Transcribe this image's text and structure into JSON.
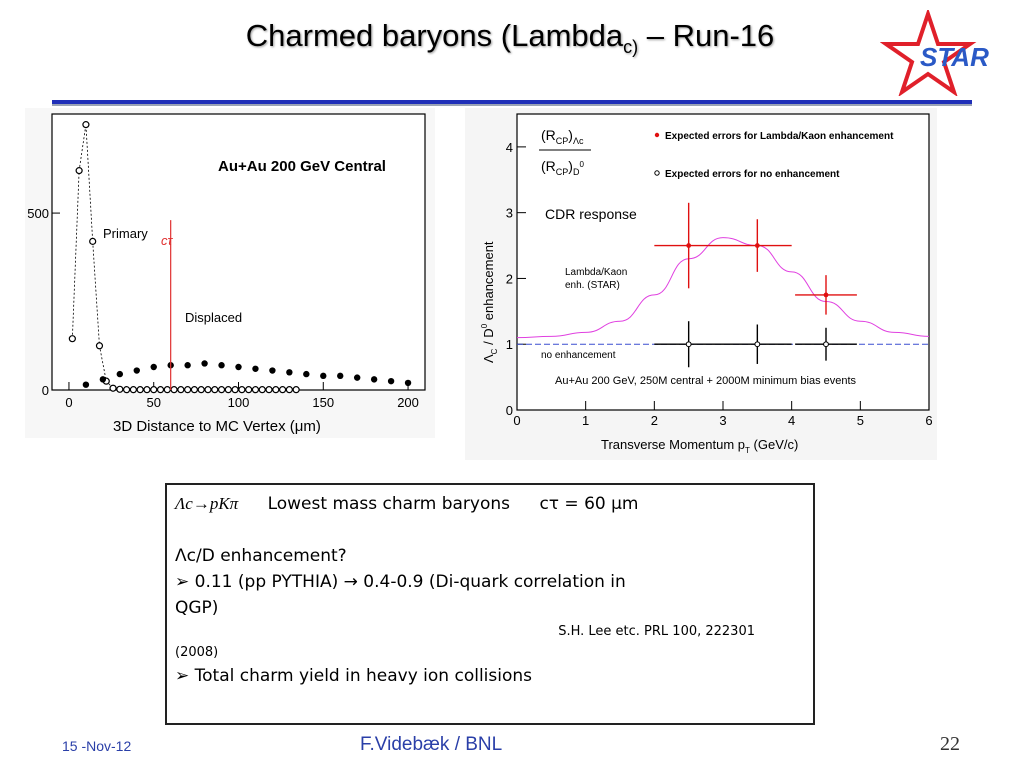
{
  "slide": {
    "title_main": "Charmed baryons (Lambda",
    "title_sub": "c)",
    "title_end": " – Run-16",
    "logo_text": "STAR",
    "colors": {
      "accent_blue": "#1f2fb8",
      "star_red": "#e0202a",
      "logo_blue": "#2a59c6"
    }
  },
  "plot_left": {
    "title": "Au+Au 200 GeV Central",
    "xlabel": "3D Distance to MC Vertex (μm)",
    "label_primary": "Primary",
    "label_ctau": "cτ",
    "label_displaced": "Displaced",
    "x_ticks": [
      "0",
      "50",
      "100",
      "150",
      "200"
    ],
    "y_ticks": [
      "0",
      "500"
    ]
  },
  "plot_right": {
    "ylabel": "Λc / D0 enhancement",
    "xlabel": "Transverse Momentum pT (GeV/c)",
    "ratio_num": "(RCP)Λc",
    "ratio_den": "(RCP)D0",
    "legend_red": "Expected errors for Lambda/Kaon enhancement",
    "legend_open": "Expected errors for no enhancement",
    "label_cdr": "CDR response",
    "label_lk_1": "Lambda/Kaon",
    "label_lk_2": "enh. (STAR)",
    "label_noenh": "no enhancement",
    "label_events": "Au+Au 200 GeV, 250M central + 2000M minimum bias events",
    "x_ticks": [
      "0",
      "1",
      "2",
      "3",
      "4",
      "5",
      "6"
    ],
    "y_ticks": [
      "0",
      "1",
      "2",
      "3",
      "4"
    ]
  },
  "chart_data": [
    {
      "type": "scatter",
      "title": "Au+Au 200 GeV Central",
      "xlabel": "3D Distance to MC Vertex (μm)",
      "ylabel": "",
      "xlim": [
        -10,
        210
      ],
      "ylim": [
        0,
        780
      ],
      "series": [
        {
          "name": "Primary",
          "x": [
            2,
            6,
            10,
            14,
            18,
            22,
            26,
            30,
            34,
            38,
            42,
            46,
            50,
            54,
            58,
            62,
            66,
            70,
            74,
            78,
            82,
            86,
            90,
            94,
            98,
            102,
            106,
            110,
            114,
            118,
            122,
            126,
            130,
            134
          ],
          "y": [
            145,
            620,
            750,
            420,
            125,
            25,
            5,
            2,
            1,
            1,
            1,
            1,
            1,
            1,
            1,
            1,
            1,
            1,
            1,
            1,
            1,
            1,
            1,
            1,
            1,
            1,
            1,
            1,
            1,
            1,
            1,
            1,
            1,
            1
          ]
        },
        {
          "name": "Displaced",
          "x": [
            10,
            20,
            30,
            40,
            50,
            60,
            70,
            80,
            90,
            100,
            110,
            120,
            130,
            140,
            150,
            160,
            170,
            180,
            190,
            200
          ],
          "y": [
            15,
            30,
            45,
            55,
            65,
            70,
            70,
            75,
            70,
            65,
            60,
            55,
            50,
            45,
            40,
            40,
            35,
            30,
            25,
            20
          ]
        }
      ]
    },
    {
      "type": "scatter",
      "title": "",
      "xlabel": "Transverse Momentum pT (GeV/c)",
      "ylabel": "Λc / D0 enhancement",
      "xlim": [
        0,
        6
      ],
      "ylim": [
        0,
        4.5
      ],
      "series": [
        {
          "name": "Expected errors for Lambda/Kaon enhancement",
          "x": [
            2.5,
            3.5,
            4.5
          ],
          "y": [
            2.5,
            2.5,
            1.75
          ],
          "xerr": [
            0.5,
            0.5,
            0.45
          ],
          "yerr": [
            0.65,
            0.4,
            0.3
          ]
        },
        {
          "name": "Expected errors for no enhancement",
          "x": [
            2.5,
            3.5,
            4.5
          ],
          "y": [
            1.0,
            1.0,
            1.0
          ],
          "xerr": [
            0.5,
            0.5,
            0.45
          ],
          "yerr": [
            0.35,
            0.3,
            0.25
          ]
        }
      ],
      "curve": {
        "name": "Lambda/Kaon enh. (STAR)",
        "x": [
          0,
          0.5,
          1,
          1.5,
          2,
          2.5,
          3,
          3.5,
          4,
          4.5,
          5,
          5.5,
          6
        ],
        "y": [
          1.1,
          1.12,
          1.18,
          1.35,
          1.75,
          2.3,
          2.62,
          2.5,
          2.1,
          1.65,
          1.35,
          1.18,
          1.12
        ]
      },
      "reference_line": 1.0
    }
  ],
  "textbox": {
    "line1_formula": "Λc→pKπ",
    "line1_desc": "Lowest mass charm baryons",
    "line1_ctau": "cτ = 60 μm",
    "line2": "Λc/D enhancement?",
    "line3": "➢ 0.11 (pp PYTHIA) → 0.4-0.9     (Di-quark correlation in",
    "line4": "QGP)",
    "line5": "S.H. Lee etc. PRL 100, 222301",
    "line6": "(2008)",
    "line7": "➢ Total charm yield in heavy ion collisions"
  },
  "footer": {
    "date": "15 -Nov-12",
    "author": "F.Videbæk / BNL",
    "page": "22"
  }
}
